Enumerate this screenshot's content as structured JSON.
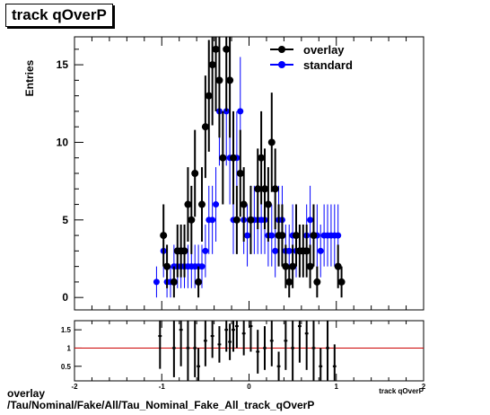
{
  "title": "track qOverP",
  "caption_line1": "overlay",
  "caption_line2": "/Tau/Nominal/Fake/All/Tau_Nominal_Fake_All_track_qOverP",
  "colors": {
    "overlay": "#000000",
    "standard": "#0000ff",
    "ratio_line": "#cc0000"
  },
  "chart_data": [
    {
      "type": "scatter",
      "title": "track qOverP",
      "ylabel": "Entries",
      "xlabel": "",
      "xlim": [
        -2,
        2
      ],
      "ylim": [
        -0.8,
        16.8
      ],
      "yticks": [
        0,
        5,
        10,
        15
      ],
      "legend": "top-right",
      "series": [
        {
          "name": "overlay",
          "color": "#000000",
          "x": [
            -0.98,
            -0.94,
            -0.86,
            -0.82,
            -0.78,
            -0.74,
            -0.7,
            -0.66,
            -0.62,
            -0.58,
            -0.54,
            -0.5,
            -0.46,
            -0.42,
            -0.38,
            -0.34,
            -0.3,
            -0.26,
            -0.22,
            -0.18,
            -0.14,
            -0.1,
            -0.06,
            0.02,
            0.1,
            0.14,
            0.18,
            0.22,
            0.26,
            0.3,
            0.34,
            0.38,
            0.42,
            0.46,
            0.5,
            0.54,
            0.58,
            0.62,
            0.66,
            0.7,
            0.74,
            0.78,
            0.82,
            0.86,
            0.9,
            0.94,
            0.98,
            1.02,
            1.06
          ],
          "y": [
            4,
            2,
            1,
            3,
            3,
            3,
            6,
            5,
            8,
            1,
            6,
            11,
            13,
            15,
            16,
            14,
            9,
            16,
            14,
            9,
            5,
            8,
            6,
            5,
            7,
            9,
            7,
            6,
            10,
            7,
            4,
            4,
            2,
            1,
            2,
            4,
            3,
            3,
            3,
            2,
            4,
            1,
            0,
            0,
            0,
            0,
            0,
            2,
            1
          ],
          "yerr": [
            2,
            1.4,
            1,
            1.7,
            1.7,
            1.7,
            2.4,
            2.2,
            2.8,
            1,
            2.4,
            3.3,
            3.6,
            3.9,
            4,
            3.7,
            3,
            4,
            3.7,
            3,
            2.2,
            2.8,
            2.4,
            2.2,
            2.6,
            3,
            2.6,
            2.4,
            3.2,
            2.6,
            2,
            2,
            1.4,
            1,
            1.4,
            2,
            1.7,
            1.7,
            1.7,
            1.4,
            2,
            1,
            0,
            0,
            0,
            0,
            0,
            1.4,
            1
          ]
        },
        {
          "name": "standard",
          "color": "#0000ff",
          "x": [
            -1.06,
            -0.98,
            -0.94,
            -0.9,
            -0.86,
            -0.82,
            -0.78,
            -0.74,
            -0.7,
            -0.66,
            -0.62,
            -0.58,
            -0.54,
            -0.5,
            -0.46,
            -0.42,
            -0.38,
            -0.34,
            -0.3,
            -0.26,
            -0.22,
            -0.18,
            -0.14,
            -0.1,
            -0.06,
            -0.02,
            0.02,
            0.06,
            0.1,
            0.14,
            0.18,
            0.22,
            0.26,
            0.3,
            0.34,
            0.38,
            0.42,
            0.46,
            0.5,
            0.54,
            0.58,
            0.62,
            0.66,
            0.7,
            0.74,
            0.78,
            0.82,
            0.86,
            0.9,
            0.94,
            0.98,
            1.02
          ],
          "y": [
            1,
            3,
            1,
            1,
            2,
            2,
            2,
            2,
            2,
            2,
            2,
            2,
            2,
            3,
            5,
            5,
            6,
            12,
            9,
            12,
            9,
            5,
            9,
            12,
            5,
            4,
            5,
            5,
            5,
            5,
            5,
            4,
            4,
            3,
            5,
            5,
            3,
            3,
            4,
            3,
            3,
            3,
            4,
            5,
            4,
            4,
            3,
            4,
            4,
            4,
            4,
            4
          ],
          "yerr": [
            1,
            1.7,
            1,
            1,
            1.4,
            1.4,
            1.4,
            1.4,
            1.4,
            1.4,
            1.4,
            1.4,
            1.4,
            1.7,
            2.2,
            2.2,
            2.4,
            3.5,
            3,
            3.5,
            3,
            2.2,
            3,
            3.5,
            2.2,
            2,
            2.2,
            2.2,
            2.2,
            2.2,
            2.2,
            2,
            2,
            1.7,
            2.2,
            2.2,
            1.7,
            1.7,
            2,
            1.7,
            1.7,
            1.7,
            2,
            2.2,
            2,
            2,
            1.7,
            2,
            2,
            2,
            2,
            2
          ]
        }
      ]
    },
    {
      "type": "scatter",
      "title": "",
      "xlabel": "track qOverP",
      "xlim": [
        -2,
        2
      ],
      "xticks": [
        -2,
        -1,
        0,
        1,
        2
      ],
      "ylim": [
        0.1,
        1.75
      ],
      "yticks": [
        0.5,
        1,
        1.5
      ],
      "reference_line": 1,
      "series": [
        {
          "name": "",
          "color": "#000000",
          "x": [
            -1.02,
            -0.86,
            -0.78,
            -0.7,
            -0.62,
            -0.58,
            -0.5,
            -0.42,
            -0.34,
            -0.26,
            -0.22,
            -0.18,
            -0.14,
            -0.06,
            0.02,
            0.1,
            0.18,
            0.26,
            0.34,
            0.42,
            0.5,
            0.58,
            0.66,
            0.74,
            0.82,
            0.9,
            0.98
          ],
          "y": [
            1.33,
            1.0,
            1.5,
            1.0,
            1.0,
            0.5,
            1.2,
            1.33,
            1.1,
            1.5,
            1.17,
            1.5,
            1.6,
            1.4,
            1.6,
            0.9,
            1.0,
            1.2,
            0.5,
            1.2,
            1.0,
            1.6,
            1.4,
            1.0,
            0.5,
            1.0,
            0.5
          ],
          "yerr": [
            0.9,
            0.8,
            1.0,
            0.9,
            0.8,
            0.5,
            0.7,
            0.6,
            0.5,
            0.6,
            0.5,
            0.6,
            0.6,
            0.6,
            0.7,
            0.6,
            0.6,
            0.7,
            0.4,
            0.8,
            0.9,
            1.0,
            1.0,
            0.9,
            0.5,
            0.9,
            0.6
          ]
        }
      ]
    }
  ]
}
